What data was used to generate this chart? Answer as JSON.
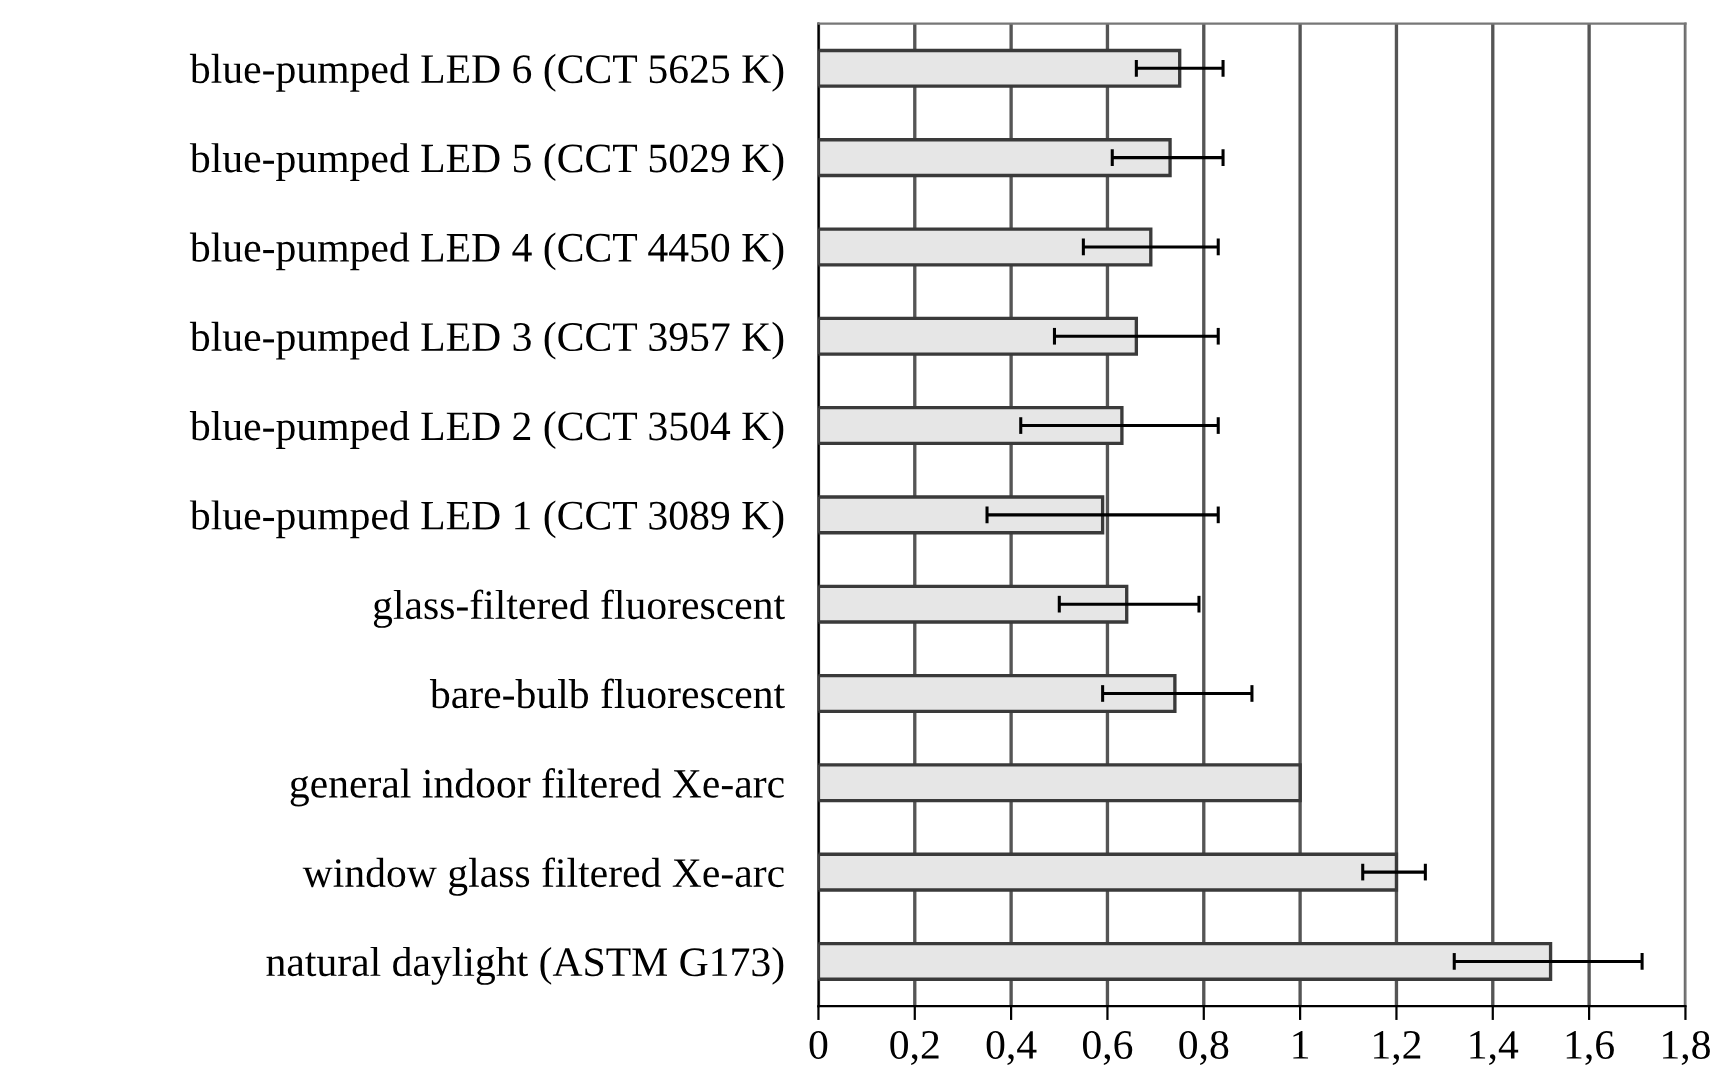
{
  "chart_data": {
    "type": "bar",
    "orientation": "horizontal",
    "categories": [
      "blue-pumped LED 6 (CCT 5625 K)",
      "blue-pumped LED 5 (CCT 5029 K)",
      "blue-pumped LED 4 (CCT 4450 K)",
      "blue-pumped LED 3 (CCT 3957 K)",
      "blue-pumped LED 2 (CCT 3504 K)",
      "blue-pumped LED 1 (CCT 3089 K)",
      "glass-filtered fluorescent",
      "bare-bulb fluorescent",
      "general indoor filtered Xe-arc",
      "window glass filtered Xe-arc",
      "natural daylight (ASTM G173)"
    ],
    "values": [
      0.75,
      0.73,
      0.69,
      0.66,
      0.63,
      0.59,
      0.64,
      0.74,
      1.0,
      1.2,
      1.52
    ],
    "errors": [
      [
        0.66,
        0.84
      ],
      [
        0.61,
        0.84
      ],
      [
        0.55,
        0.83
      ],
      [
        0.49,
        0.83
      ],
      [
        0.42,
        0.83
      ],
      [
        0.35,
        0.83
      ],
      [
        0.5,
        0.79
      ],
      [
        0.59,
        0.9
      ],
      null,
      [
        1.13,
        1.26
      ],
      [
        1.32,
        1.71
      ]
    ],
    "color": "#e6e6e6",
    "xlim": [
      0,
      1.8
    ],
    "xticks": [
      0,
      {
        "value": 0.2,
        "label": "0,2"
      },
      {
        "value": 0.4,
        "label": "0,4"
      },
      {
        "value": 0.6,
        "label": "0,6"
      },
      {
        "value": 0.8,
        "label": "0,8"
      },
      1,
      {
        "value": 1.2,
        "label": "1,2"
      },
      {
        "value": 1.4,
        "label": "1,4"
      },
      {
        "value": 1.6,
        "label": "1,6"
      },
      {
        "value": 1.8,
        "label": "1,8"
      }
    ],
    "grid": "x"
  }
}
